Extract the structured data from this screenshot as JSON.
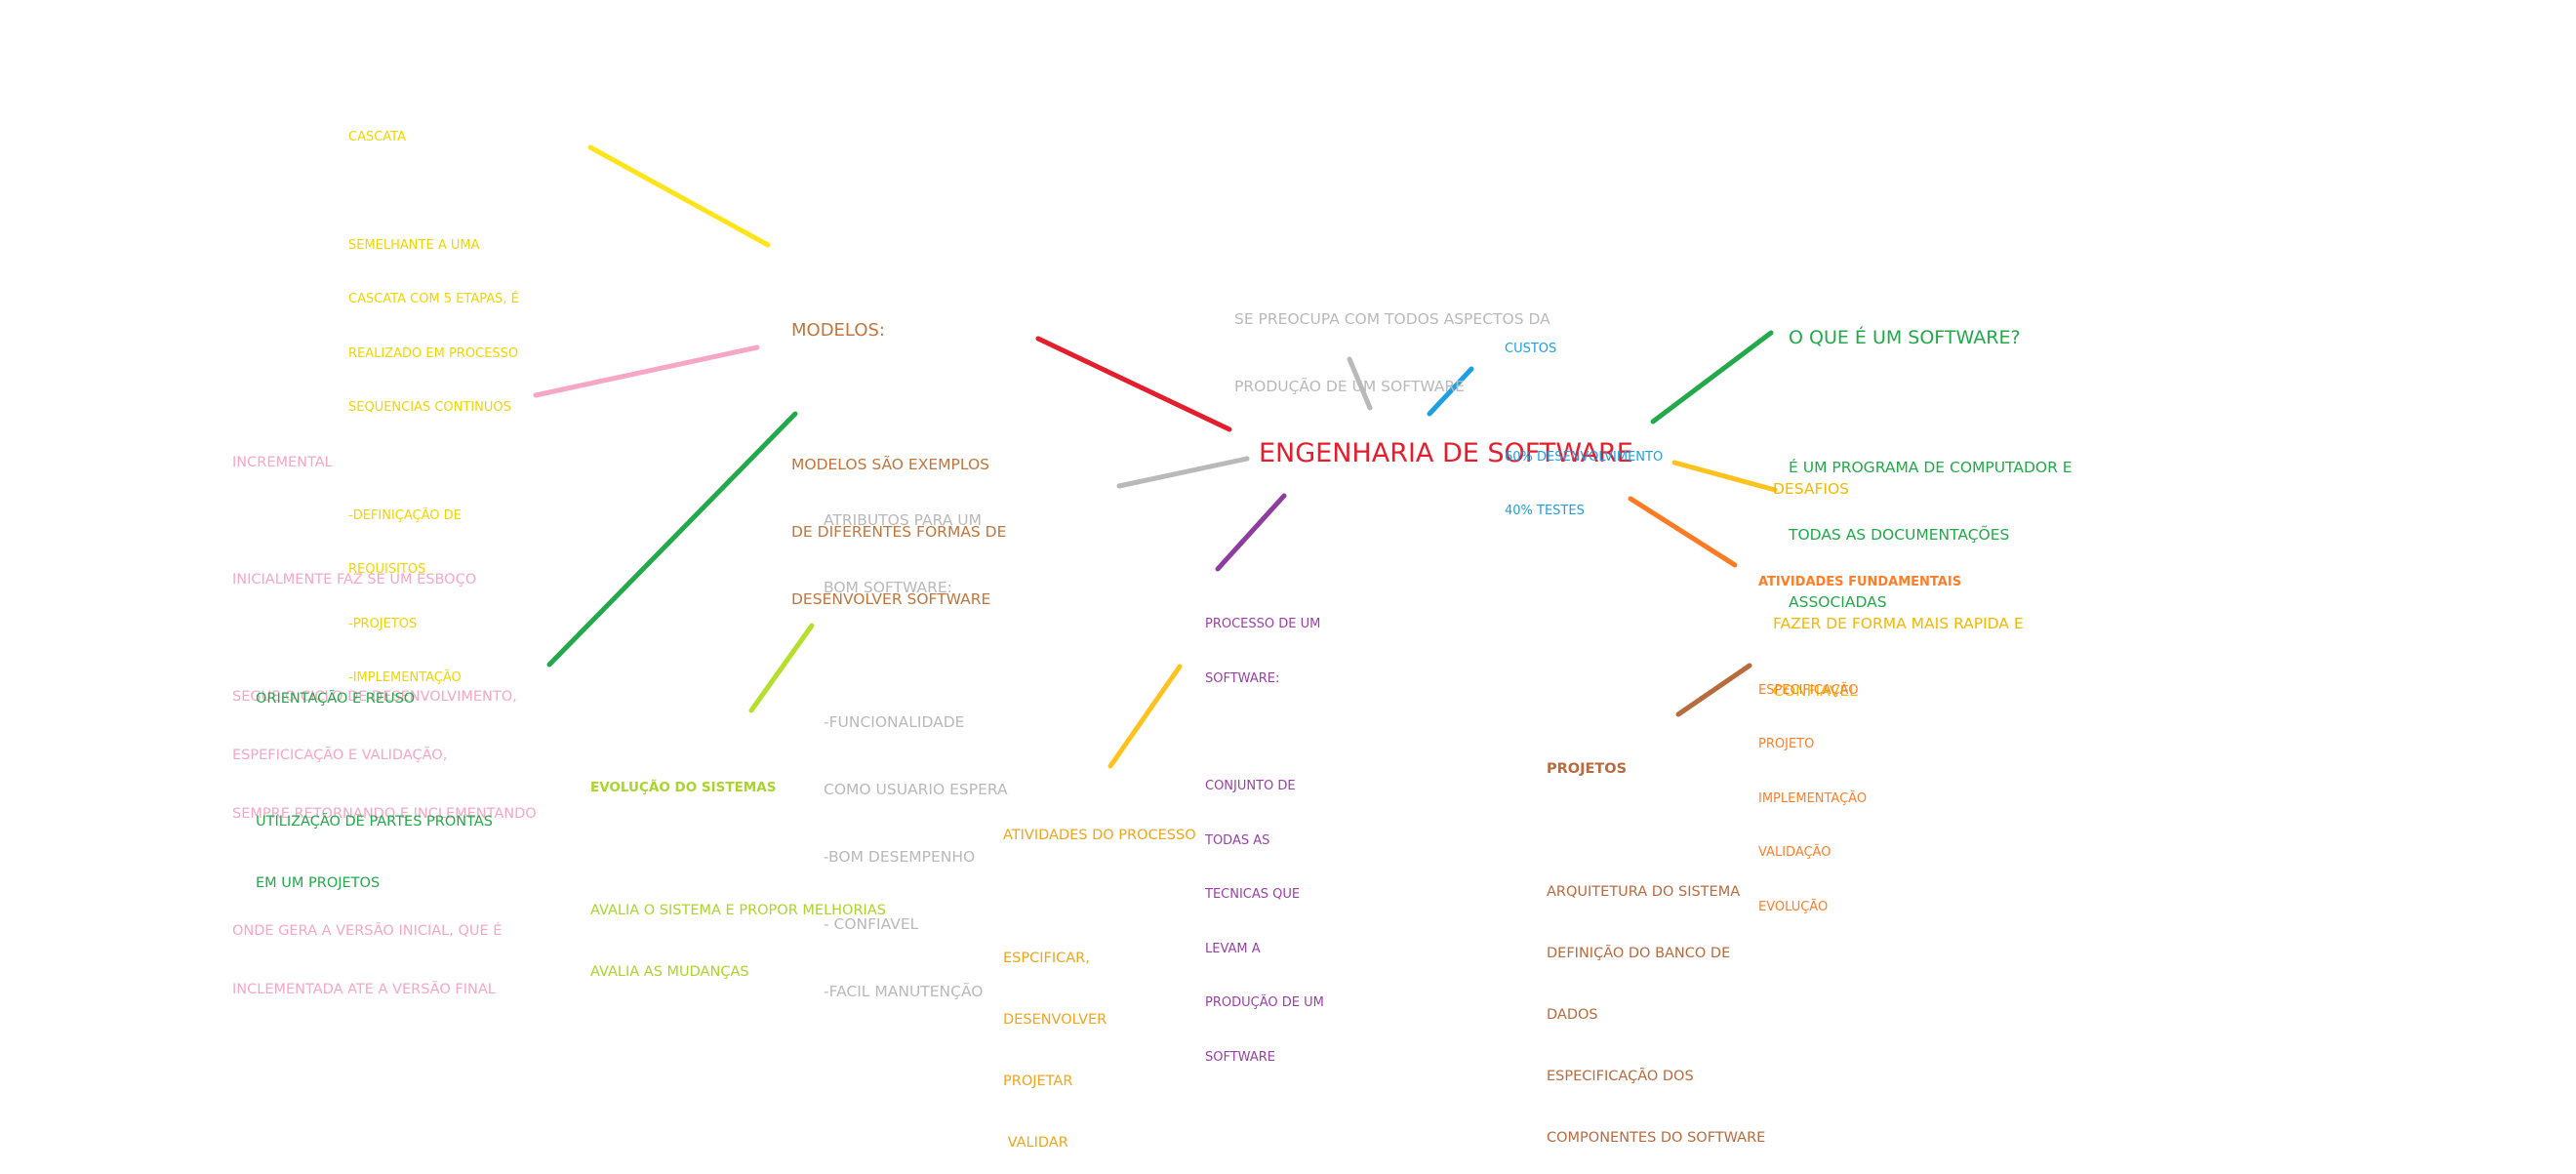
{
  "colors": {
    "red": "#e31e2d",
    "yellow": "#ffe41a",
    "pink": "#f7a7c4",
    "green": "#22a94a",
    "lime": "#b6df2c",
    "gray": "#b9b9b9",
    "purple": "#8e3d9e",
    "amber": "#ffc21e",
    "blue": "#1f9fe3",
    "orange": "#ff7a22",
    "brown": "#b66c3c",
    "cascata_text": "#f2d400",
    "desafios_text": "#f4b800",
    "modelos_text": "#c0763d",
    "projetos_text": "#b86b3f",
    "processo_text": "#9b3fa6",
    "atividades_processo_text": "#f0a51c",
    "evolucao_text": "#a9d52b",
    "fundamentais_text": "#ff7e27"
  },
  "center": {
    "title": "ENGENHARIA DE SOFTWARE"
  },
  "nodes": {
    "cascata": {
      "title": "CASCATA",
      "lines": [
        "SEMELHANTE A UMA",
        "CASCATA COM 5 ETAPAS, É",
        "REALIZADO EM PROCESSO",
        "SEQUENCIAS CONTINUOS"
      ],
      "items": [
        "-DEFINIÇAÇÃO DE",
        "REQUISITOS",
        "-PROJETOS",
        "-IMPLEMENTAÇÃO"
      ]
    },
    "modelos": {
      "title": "MODELOS:",
      "lines": [
        "MODELOS SÃO EXEMPLOS",
        "DE DIFERENTES FORMAS DE",
        "DESENVOLVER SOFTWARE"
      ]
    },
    "incremental": {
      "title": "INCREMENTAL",
      "p1": "INICIALMENTE FAZ SE UM ESBOÇO",
      "p2": [
        "SEGUE O CICLO DE DESENVOLVIMENTO,",
        "ESPEFICICAÇÃO E VALIDAÇÃO,",
        "SEMPRE RETORNANDO E INCLEMENTANDO"
      ],
      "p3": [
        "ONDE GERA A VERSÃO INICIAL, QUE É",
        "INCLEMENTADA ATE A VERSÃO FINAL"
      ]
    },
    "orientacao": {
      "title": "ORIENTAÇÃO E REUSO",
      "lines": [
        "UTILIZAÇÃO DE PARTES PRONTAS",
        "EM UM PROJETOS"
      ]
    },
    "atributos": {
      "lines": [
        "ATRIBUTOS PARA UM",
        "BOM SOFTWARE:"
      ],
      "items": [
        "-FUNCIONALIDADE",
        "COMO USUARIO ESPERA",
        "-BOM DESEMPENHO",
        "- CONFIAVEL",
        "-FACIL MANUTENÇÃO"
      ]
    },
    "evolucao": {
      "title": "EVOLUÇÃO DO SISTEMAS",
      "lines": [
        "AVALIA O SISTEMA E PROPOR MELHORIAS",
        "AVALIA AS MUDANÇAS"
      ]
    },
    "preocupa": {
      "lines": [
        "SE PREOCUPA COM TODOS ASPECTOS DA",
        "PRODUÇÃO DE UM SOFTWARE"
      ]
    },
    "custos": {
      "title": "CUSTOS",
      "lines": [
        "60% DESENVOLVIMENTO",
        "40% TESTES"
      ]
    },
    "oque": {
      "title": "O QUE É UM SOFTWARE?",
      "lines": [
        "É UM PROGRAMA DE COMPUTADOR E",
        "TODAS AS DOCUMENTAÇÕES",
        "ASSOCIADAS"
      ]
    },
    "desafios": {
      "title": "DESAFIOS",
      "lines": [
        "FAZER DE FORMA MAIS RAPIDA E",
        "CONFIAVEL"
      ]
    },
    "fundamentais": {
      "title": "ATIVIDADES FUNDAMENTAIS",
      "items": [
        "ESPECIFICAÇÃO",
        "PROJETO",
        "IMPLEMENTAÇÃO",
        "VALIDAÇÃO",
        "EVOLUÇÃO"
      ]
    },
    "processo": {
      "lines": [
        "PROCESSO DE UM",
        "SOFTWARE:"
      ],
      "items": [
        "CONJUNTO DE",
        "TODAS AS",
        "TECNICAS QUE",
        "LEVAM A",
        "PRODUÇÃO DE UM",
        "SOFTWARE"
      ]
    },
    "atividades_processo": {
      "title": "ATIVIDADES DO PROCESSO",
      "items": [
        "ESPCIFICAR,",
        "DESENVOLVER",
        "PROJETAR",
        " VALIDAR"
      ]
    },
    "projetos": {
      "title": "PROJETOS",
      "lines": [
        "ARQUITETURA DO SISTEMA",
        "DEFINIÇÃO DO BANCO DE",
        "DADOS",
        "ESPECIFICAÇÃO DOS",
        "COMPONENTES DO SOFTWARE"
      ]
    }
  }
}
